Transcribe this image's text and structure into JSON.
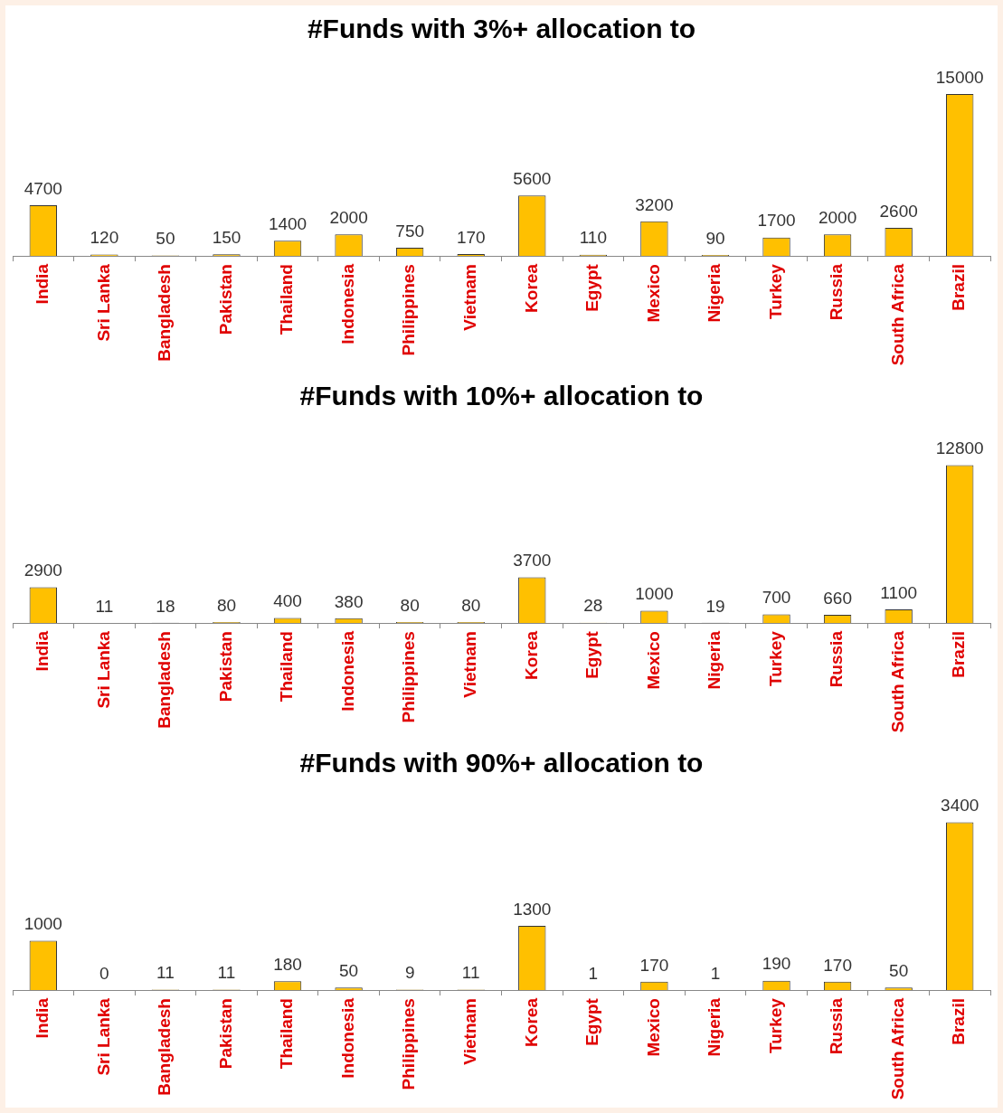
{
  "chart_data": [
    {
      "type": "bar",
      "title": "#Funds with 3%+ allocation to",
      "categories": [
        "India",
        "Sri Lanka",
        "Bangladesh",
        "Pakistan",
        "Thailand",
        "Indonesia",
        "Philippines",
        "Vietnam",
        "Korea",
        "Egypt",
        "Mexico",
        "Nigeria",
        "Turkey",
        "Russia",
        "South Africa",
        "Brazil"
      ],
      "values": [
        4700,
        120,
        50,
        150,
        1400,
        2000,
        750,
        170,
        5600,
        110,
        3200,
        90,
        1700,
        2000,
        2600,
        15000
      ],
      "color": "#ffc000",
      "data_labels": true,
      "grid": false,
      "legend": false,
      "tick_labels": "x"
    },
    {
      "type": "bar",
      "title": "#Funds with 10%+ allocation to",
      "categories": [
        "India",
        "Sri Lanka",
        "Bangladesh",
        "Pakistan",
        "Thailand",
        "Indonesia",
        "Philippines",
        "Vietnam",
        "Korea",
        "Egypt",
        "Mexico",
        "Nigeria",
        "Turkey",
        "Russia",
        "South Africa",
        "Brazil"
      ],
      "values": [
        2900,
        11,
        18,
        80,
        400,
        380,
        80,
        80,
        3700,
        28,
        1000,
        19,
        700,
        660,
        1100,
        12800
      ],
      "color": "#ffc000",
      "data_labels": true,
      "grid": false,
      "legend": false,
      "tick_labels": "x"
    },
    {
      "type": "bar",
      "title": "#Funds with 90%+ allocation to",
      "categories": [
        "India",
        "Sri Lanka",
        "Bangladesh",
        "Pakistan",
        "Thailand",
        "Indonesia",
        "Philippines",
        "Vietnam",
        "Korea",
        "Egypt",
        "Mexico",
        "Nigeria",
        "Turkey",
        "Russia",
        "South Africa",
        "Brazil"
      ],
      "values": [
        1000,
        0,
        11,
        11,
        180,
        50,
        9,
        11,
        1300,
        1,
        170,
        1,
        190,
        170,
        50,
        3400
      ],
      "color": "#ffc000",
      "data_labels": true,
      "grid": false,
      "legend": false,
      "tick_labels": "x"
    }
  ]
}
